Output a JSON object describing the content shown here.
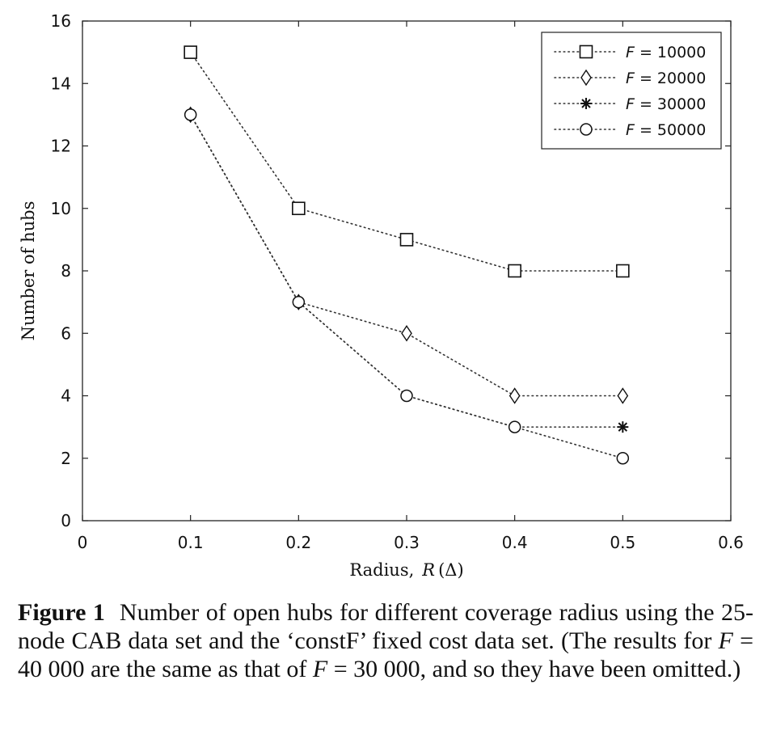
{
  "chart_data": {
    "type": "line",
    "x": [
      0.1,
      0.2,
      0.3,
      0.4,
      0.5
    ],
    "xlim": [
      0,
      0.6
    ],
    "ylim": [
      0,
      16
    ],
    "xticks": [
      "0",
      "0.1",
      "0.2",
      "0.3",
      "0.4",
      "0.5",
      "0.6"
    ],
    "yticks": [
      "0",
      "2",
      "4",
      "6",
      "8",
      "10",
      "12",
      "14",
      "16"
    ],
    "xlabel": "Radius,",
    "xlabel_var": "R",
    "xlabel_unit": "(Δ)",
    "ylabel": "Number of hubs",
    "grid": false,
    "legend_position": "top-right",
    "series": [
      {
        "name": "F = 10000",
        "name_var": "F",
        "name_val": "= 10000",
        "marker": "square",
        "x": [
          0.1,
          0.2,
          0.3,
          0.4,
          0.5
        ],
        "values": [
          15,
          10,
          9,
          8,
          8
        ]
      },
      {
        "name": "F = 20000",
        "name_var": "F",
        "name_val": "= 20000",
        "marker": "diamond",
        "x": [
          0.1,
          0.2,
          0.3,
          0.4,
          0.5
        ],
        "values": [
          13,
          7,
          6,
          4,
          4
        ]
      },
      {
        "name": "F = 30000",
        "name_var": "F",
        "name_val": "= 30000",
        "marker": "star",
        "x": [
          0.1,
          0.2,
          0.3,
          0.4,
          0.5
        ],
        "values": [
          13,
          7,
          4,
          3,
          3
        ]
      },
      {
        "name": "F = 50000",
        "name_var": "F",
        "name_val": "= 50000",
        "marker": "circle",
        "x": [
          0.1,
          0.2,
          0.3,
          0.4,
          0.5
        ],
        "values": [
          13,
          7,
          4,
          3,
          2
        ]
      }
    ]
  },
  "caption": {
    "label": "Figure 1",
    "text1": "Number of open hubs for different coverage radius using the 25-node CAB data set and the ‘constF’ fixed cost data set. (The results for ",
    "var1": "F",
    "val1": " = 40 000 are the same as that of ",
    "var2": "F",
    "val2": " = 30 000, and so they have been omitted.)"
  }
}
